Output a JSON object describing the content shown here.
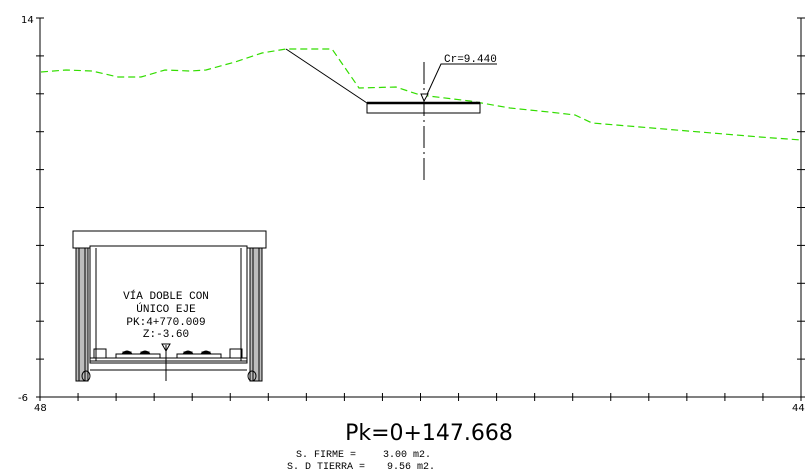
{
  "axes": {
    "y_top_label": "14",
    "y_bottom_label": "-6",
    "x_left_label": "48",
    "x_right_label": "44"
  },
  "crown_label": "Cr=9.440",
  "inset": {
    "line1": "VÍA DOBLE CON",
    "line2": "ÚNICO EJE",
    "line3": "PK:4+770.009",
    "line4": "Z:-3.60"
  },
  "footer": {
    "pk": "Pk=0+147.668",
    "firme_label": "S. FIRME =",
    "firme_value": "3.00  m2.",
    "tierra_label": "S. D TIERRA =",
    "tierra_value": "9.56  m2."
  },
  "colors": {
    "terrain": "#33dd00",
    "lines": "#000000"
  }
}
